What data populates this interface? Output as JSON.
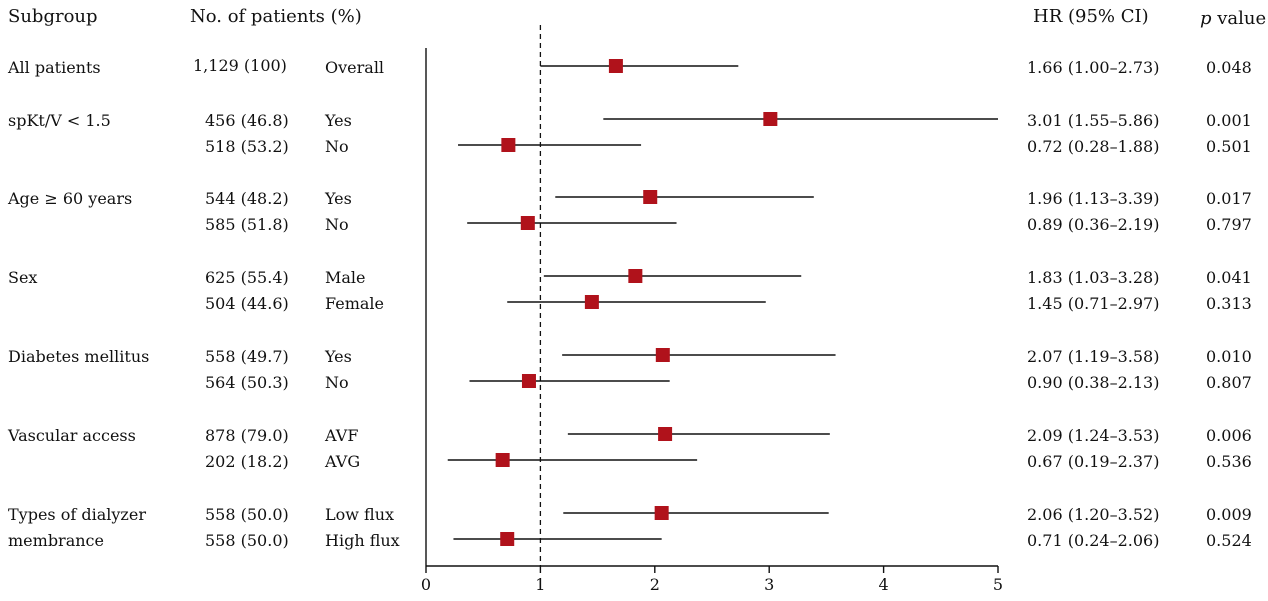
{
  "headers": {
    "subgroup": "Subgroup",
    "patients": "No. of patients (%)",
    "hr": "HR (95%  CI)",
    "p_italic": "p",
    "p_rest": " value"
  },
  "colors": {
    "marker": "#b0121b",
    "line": "#111111",
    "text": "#111111"
  },
  "chart_data": {
    "type": "forest",
    "reference_line": 1,
    "xlim": [
      0,
      5
    ],
    "xticks": [
      0,
      1,
      2,
      3,
      4,
      5
    ],
    "groups": [
      {
        "name": "All patients",
        "name_lines": [
          "All patients"
        ],
        "rows": [
          {
            "level": "Overall",
            "n": "1,129 (100)",
            "hr": 1.66,
            "lo": 1.0,
            "hi": 2.73,
            "hr_text": "1.66 (1.00–2.73)",
            "p": "0.048"
          }
        ]
      },
      {
        "name": "spKt/V < 1.5",
        "name_lines": [
          "spKt/V < 1.5"
        ],
        "rows": [
          {
            "level": "Yes",
            "n": "456 (46.8)",
            "hr": 3.01,
            "lo": 1.55,
            "hi": 5.86,
            "hr_text": "3.01 (1.55–5.86)",
            "p": "0.001"
          },
          {
            "level": "No",
            "n": "518 (53.2)",
            "hr": 0.72,
            "lo": 0.28,
            "hi": 1.88,
            "hr_text": "0.72 (0.28–1.88)",
            "p": "0.501"
          }
        ]
      },
      {
        "name": "Age ≥ 60 years",
        "name_lines": [
          "Age ≥ 60 years"
        ],
        "rows": [
          {
            "level": "Yes",
            "n": "544 (48.2)",
            "hr": 1.96,
            "lo": 1.13,
            "hi": 3.39,
            "hr_text": "1.96 (1.13–3.39)",
            "p": "0.017"
          },
          {
            "level": "No",
            "n": "585 (51.8)",
            "hr": 0.89,
            "lo": 0.36,
            "hi": 2.19,
            "hr_text": "0.89 (0.36–2.19)",
            "p": "0.797"
          }
        ]
      },
      {
        "name": "Sex",
        "name_lines": [
          "Sex"
        ],
        "rows": [
          {
            "level": "Male",
            "n": "625 (55.4)",
            "hr": 1.83,
            "lo": 1.03,
            "hi": 3.28,
            "hr_text": "1.83 (1.03–3.28)",
            "p": "0.041"
          },
          {
            "level": "Female",
            "n": "504 (44.6)",
            "hr": 1.45,
            "lo": 0.71,
            "hi": 2.97,
            "hr_text": "1.45 (0.71–2.97)",
            "p": "0.313"
          }
        ]
      },
      {
        "name": "Diabetes mellitus",
        "name_lines": [
          "Diabetes mellitus"
        ],
        "rows": [
          {
            "level": "Yes",
            "n": "558 (49.7)",
            "hr": 2.07,
            "lo": 1.19,
            "hi": 3.58,
            "hr_text": "2.07 (1.19–3.58)",
            "p": "0.010"
          },
          {
            "level": "No",
            "n": "564 (50.3)",
            "hr": 0.9,
            "lo": 0.38,
            "hi": 2.13,
            "hr_text": "0.90 (0.38–2.13)",
            "p": "0.807"
          }
        ]
      },
      {
        "name": "Vascular access",
        "name_lines": [
          "Vascular access"
        ],
        "rows": [
          {
            "level": "AVF",
            "n": "878 (79.0)",
            "hr": 2.09,
            "lo": 1.24,
            "hi": 3.53,
            "hr_text": "2.09 (1.24–3.53)",
            "p": "0.006"
          },
          {
            "level": "AVG",
            "n": "202 (18.2)",
            "hr": 0.67,
            "lo": 0.19,
            "hi": 2.37,
            "hr_text": "0.67 (0.19–2.37)",
            "p": "0.536"
          }
        ]
      },
      {
        "name": "Types of dialyzer membrance",
        "name_lines": [
          "Types of dialyzer",
          "membrance"
        ],
        "rows": [
          {
            "level": "Low flux",
            "n": "558 (50.0)",
            "hr": 2.06,
            "lo": 1.2,
            "hi": 3.52,
            "hr_text": "2.06 (1.20–3.52)",
            "p": "0.009"
          },
          {
            "level": "High flux",
            "n": "558 (50.0)",
            "hr": 0.71,
            "lo": 0.24,
            "hi": 2.06,
            "hr_text": "0.71 (0.24–2.06)",
            "p": "0.524"
          }
        ]
      }
    ]
  }
}
